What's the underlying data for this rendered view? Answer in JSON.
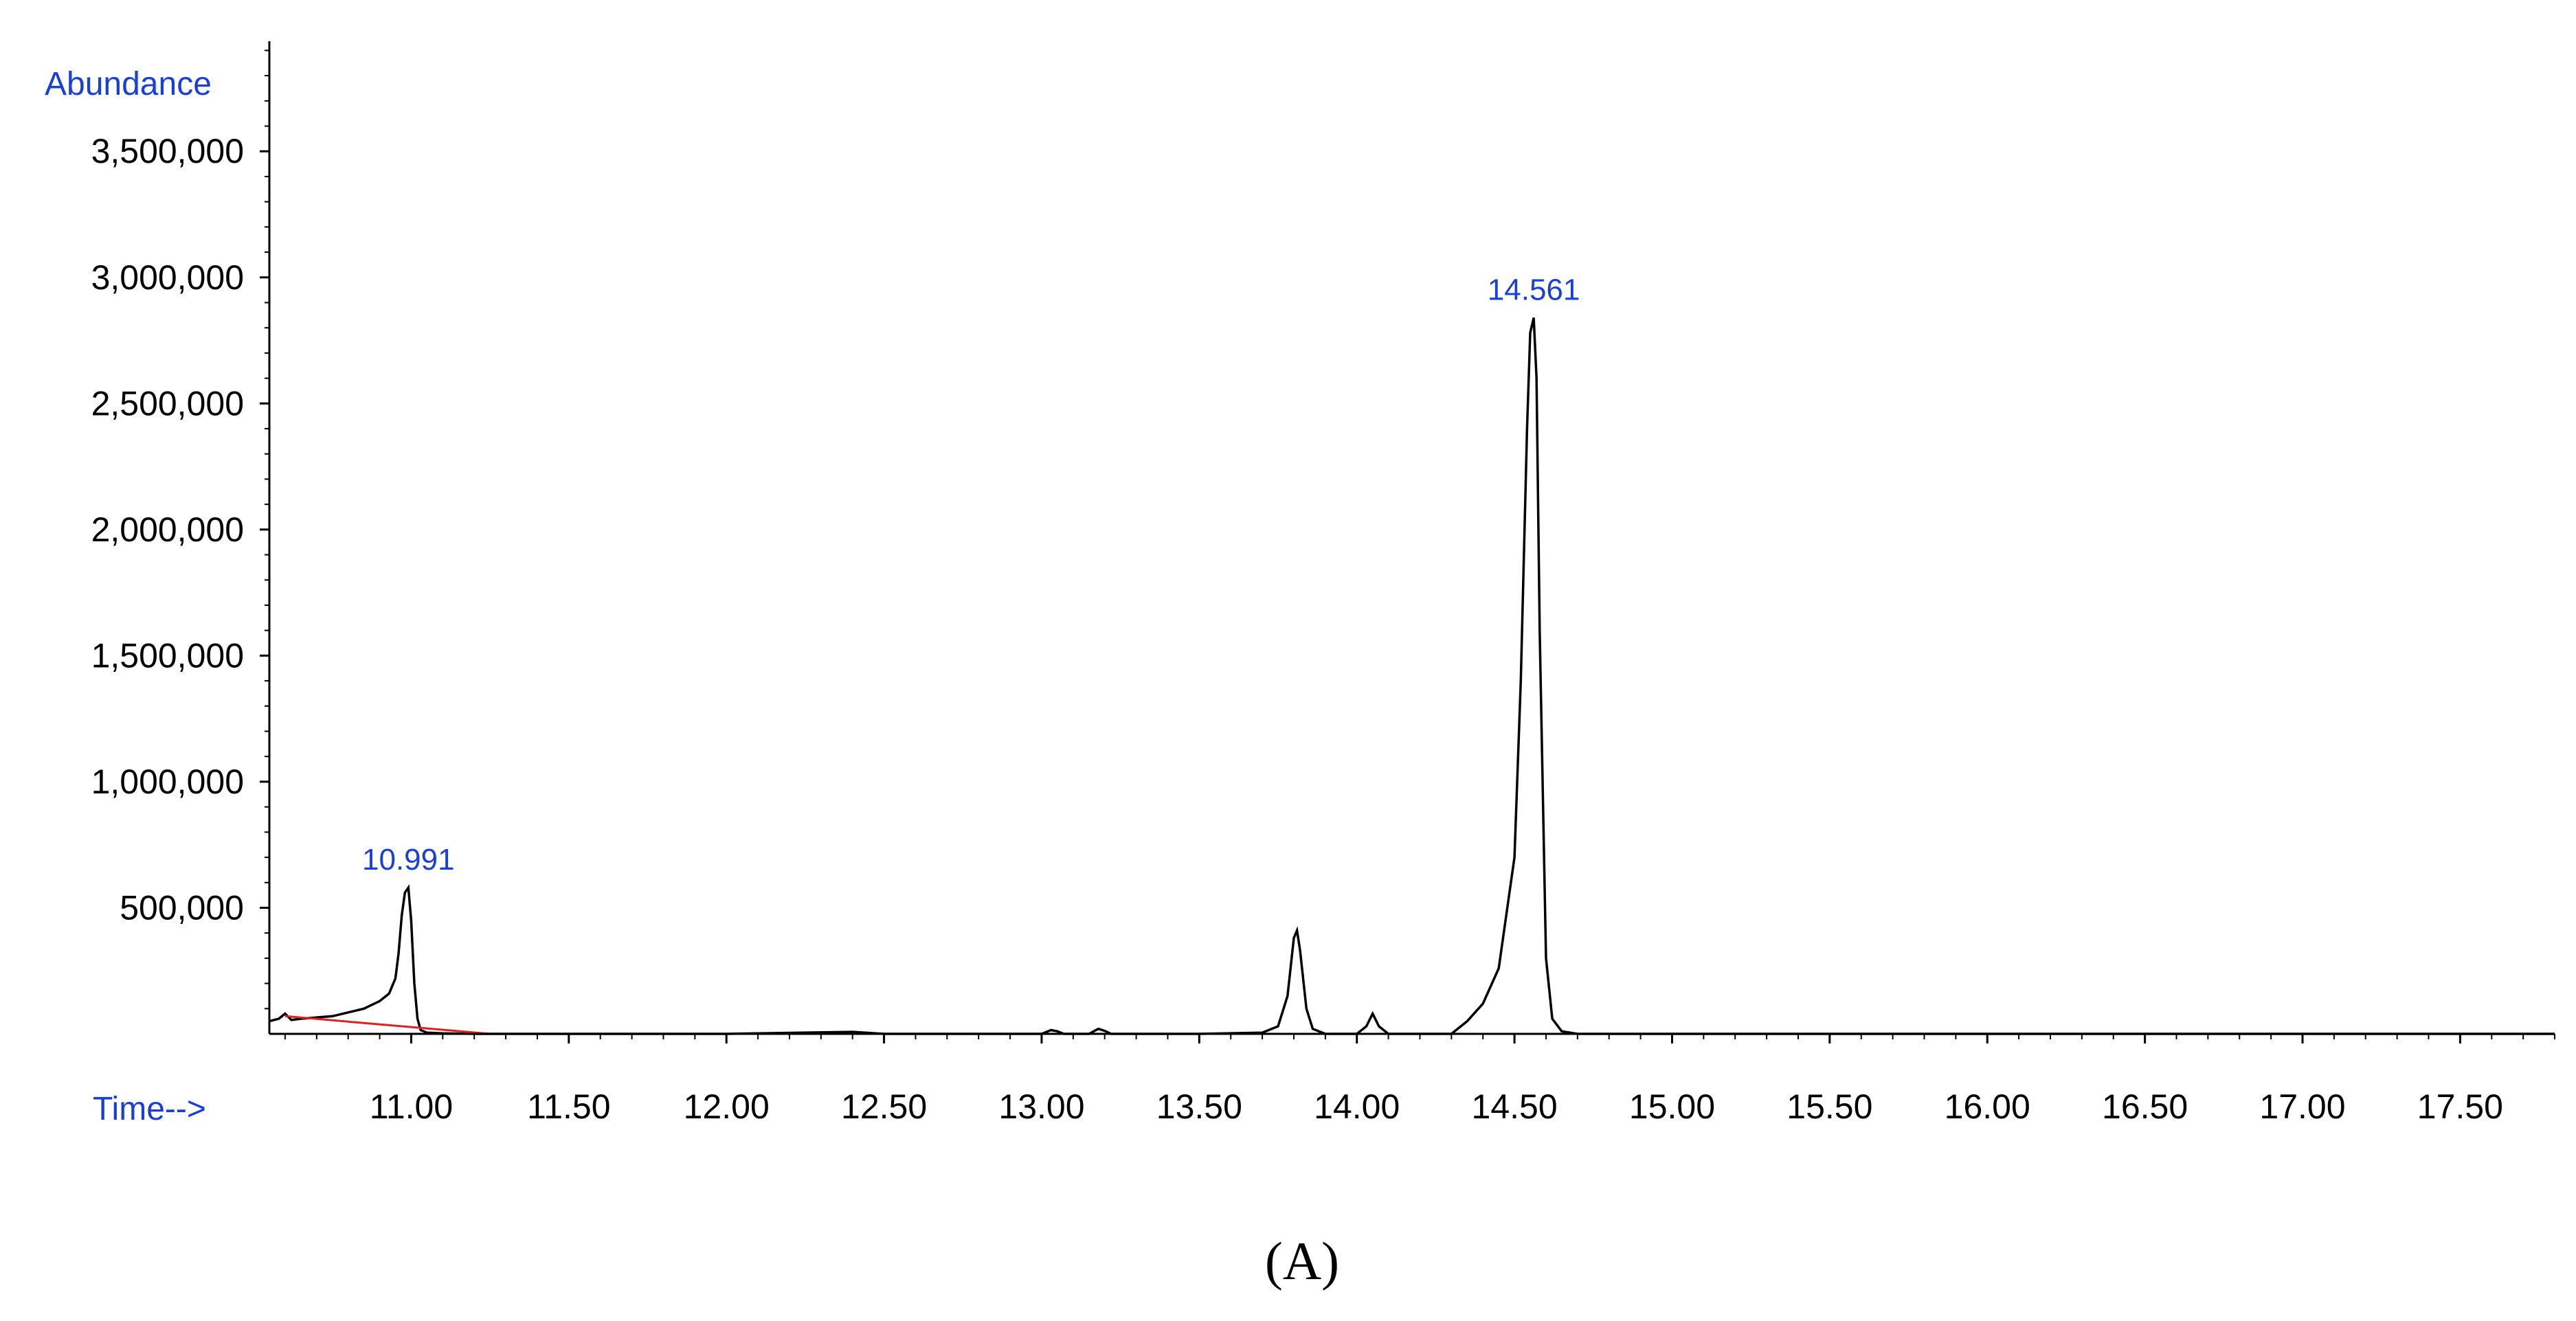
{
  "chart_data": {
    "type": "line",
    "title": "",
    "xlabel": "Time-->",
    "ylabel": "Abundance",
    "xlim": [
      10.55,
      17.8
    ],
    "ylim": [
      0,
      4100000
    ],
    "x_ticks": [
      11.0,
      11.5,
      12.0,
      12.5,
      13.0,
      13.5,
      14.0,
      14.5,
      15.0,
      15.5,
      16.0,
      16.5,
      17.0,
      17.5
    ],
    "x_tick_labels": [
      "11.00",
      "11.50",
      "12.00",
      "12.50",
      "13.00",
      "13.50",
      "14.00",
      "14.50",
      "15.00",
      "15.50",
      "16.00",
      "16.50",
      "17.00",
      "17.50"
    ],
    "y_ticks": [
      500000,
      1000000,
      1500000,
      2000000,
      2500000,
      3000000,
      3500000
    ],
    "y_tick_labels": [
      "500,000",
      "1,000,000",
      "1,500,000",
      "2,000,000",
      "2,500,000",
      "3,000,000",
      "3,500,000"
    ],
    "grid": false,
    "series": [
      {
        "values_x": [
          10.55,
          10.58,
          10.6,
          10.62,
          10.65,
          10.7,
          10.75,
          10.8,
          10.85,
          10.9,
          10.93,
          10.95,
          10.96,
          10.97,
          10.98,
          10.991,
          11.0,
          11.01,
          11.02,
          11.03,
          11.05,
          11.1,
          11.2,
          11.5,
          12.0,
          12.4,
          12.5,
          13.0,
          13.03,
          13.05,
          13.07,
          13.15,
          13.18,
          13.2,
          13.22,
          13.5,
          13.7,
          13.75,
          13.78,
          13.8,
          13.81,
          13.82,
          13.84,
          13.86,
          13.9,
          14.0,
          14.03,
          14.05,
          14.07,
          14.1,
          14.3,
          14.35,
          14.4,
          14.45,
          14.5,
          14.52,
          14.54,
          14.55,
          14.561,
          14.57,
          14.58,
          14.6,
          14.62,
          14.65,
          14.7,
          15.0,
          16.0,
          17.0,
          17.8
        ],
        "values_y": [
          50000,
          60000,
          80000,
          55000,
          60000,
          65000,
          70000,
          85000,
          100000,
          130000,
          160000,
          220000,
          320000,
          470000,
          560000,
          580000,
          450000,
          200000,
          60000,
          15000,
          5000,
          2000,
          0,
          0,
          0,
          8000,
          0,
          0,
          15000,
          10000,
          0,
          0,
          20000,
          12000,
          0,
          0,
          5000,
          30000,
          150000,
          380000,
          410000,
          330000,
          100000,
          20000,
          0,
          0,
          30000,
          80000,
          30000,
          0,
          0,
          50000,
          120000,
          260000,
          700000,
          1400000,
          2400000,
          2780000,
          2840000,
          2600000,
          1600000,
          300000,
          60000,
          10000,
          0,
          0,
          0,
          0,
          0
        ],
        "color": "#000000"
      },
      {
        "values_x": [
          10.6,
          11.25
        ],
        "values_y": [
          70000,
          0
        ],
        "color": "#e02020"
      },
      {
        "values_x": [
          14.3,
          15.15
        ],
        "values_y": [
          0,
          0
        ],
        "color": "#e02020"
      }
    ],
    "annotations": [
      {
        "text": "10.991",
        "x": 10.991,
        "y": 580000
      },
      {
        "text": "14.561",
        "x": 14.561,
        "y": 2840000
      }
    ]
  },
  "panel_label": "(A)"
}
